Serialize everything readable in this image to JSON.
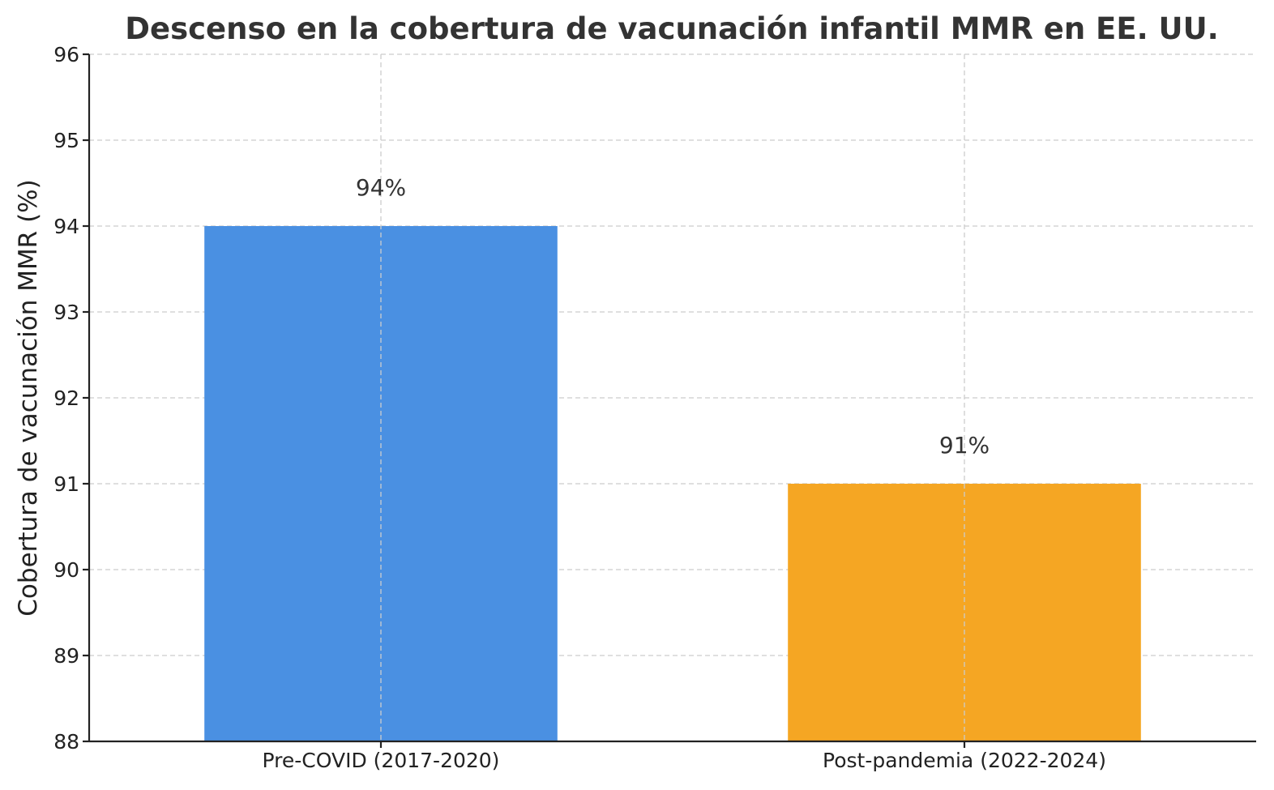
{
  "chart_data": {
    "type": "bar",
    "title": "Descenso en la cobertura de vacunación infantil MMR en EE. UU.",
    "xlabel": "",
    "ylabel": "Cobertura de vacunación MMR (%)",
    "categories": [
      "Pre-COVID (2017-2020)",
      "Post-pandemia (2022-2024)"
    ],
    "values": [
      94,
      91
    ],
    "data_labels": [
      "94%",
      "91%"
    ],
    "colors": [
      "#4A90E2",
      "#F5A623"
    ],
    "ylim": [
      88,
      96
    ],
    "yticks": [
      88,
      89,
      90,
      91,
      92,
      93,
      94,
      95,
      96
    ],
    "grid": true,
    "legend": "none"
  }
}
